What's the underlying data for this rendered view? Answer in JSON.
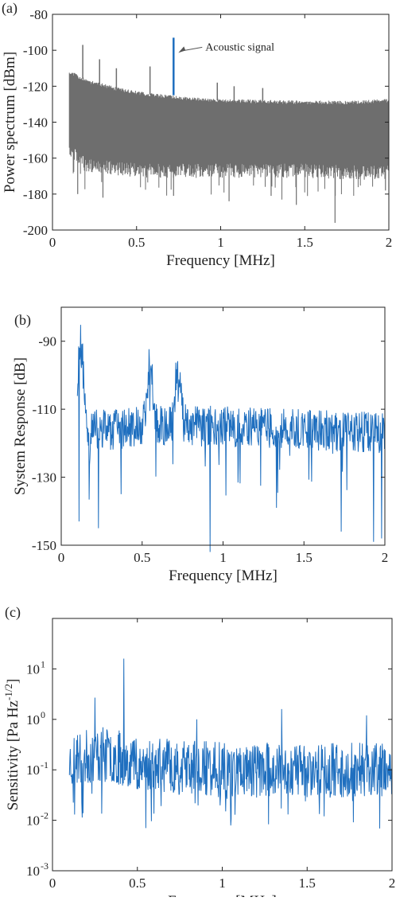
{
  "chart_data": [
    {
      "type": "line",
      "panel_label": "(a)",
      "xlabel": "Frequency [MHz]",
      "ylabel": "Power spectrum [dBm]",
      "xlim": [
        0,
        2
      ],
      "ylim": [
        -200,
        -80
      ],
      "xticks": [
        0,
        0.5,
        1,
        1.5,
        2
      ],
      "xtick_labels": [
        "0",
        "0.5",
        "1",
        "1.5",
        "2"
      ],
      "yticks": [
        -80,
        -100,
        -120,
        -140,
        -160,
        -180,
        -200
      ],
      "ytick_labels": [
        "-80",
        "-100",
        "-120",
        "-140",
        "-160",
        "-180",
        "-200"
      ],
      "annotation": {
        "text": "Acoustic signal",
        "x": 0.72,
        "y": -93
      },
      "colors": {
        "trace": "#6e6e6e",
        "signal": "#1f6fbf",
        "axes": "#222222"
      },
      "series": [
        {
          "role": "envelope",
          "x_range": [
            0.1,
            2.0
          ],
          "x": [
            0.1,
            0.2,
            0.4,
            0.6,
            0.8,
            1.0,
            1.2,
            1.5,
            1.8,
            2.0
          ],
          "upper": [
            -112,
            -117,
            -122,
            -125,
            -127,
            -128,
            -128.5,
            -129,
            -129,
            -128
          ],
          "lower": [
            -152,
            -160,
            -162,
            -163,
            -163,
            -163,
            -163,
            -163,
            -164,
            -164
          ]
        },
        {
          "role": "spurs",
          "x": [
            0.18,
            0.28,
            0.38,
            0.58,
            0.98,
            1.08,
            1.25
          ],
          "peak": [
            -97,
            -105,
            -110,
            -109,
            -118,
            -120,
            -121
          ]
        },
        {
          "role": "dips",
          "x": [
            0.15,
            0.3,
            0.72,
            1.05,
            1.3,
            1.45,
            1.68,
            1.98
          ],
          "min": [
            -180,
            -182,
            -181,
            -184,
            -181,
            -186,
            -196,
            -178
          ]
        },
        {
          "role": "signal",
          "x": [
            0.72
          ],
          "peak": [
            -93
          ]
        }
      ]
    },
    {
      "type": "line",
      "panel_label": "(b)",
      "xlabel": "Frequency [MHz]",
      "ylabel": "System Response [dB]",
      "xlim": [
        0,
        2
      ],
      "ylim": [
        -150,
        -80
      ],
      "xticks": [
        0,
        0.5,
        1,
        1.5,
        2
      ],
      "xtick_labels": [
        "0",
        "0.5",
        "1",
        "1.5",
        "2"
      ],
      "yticks": [
        -90,
        -110,
        -130,
        -150
      ],
      "ytick_labels": [
        "-90",
        "-110",
        "-130",
        "-150"
      ],
      "colors": {
        "trace": "#1f6fbf",
        "axes": "#222222"
      },
      "series": [
        {
          "role": "baseline",
          "x": [
            0.1,
            0.3,
            0.5,
            1.0,
            1.5,
            2.0
          ],
          "y": [
            -116,
            -116,
            -115,
            -115,
            -116,
            -117
          ]
        },
        {
          "role": "peaks",
          "x": [
            0.12,
            0.55,
            0.72
          ],
          "peak": [
            -84,
            -95,
            -97
          ]
        },
        {
          "role": "dips",
          "x": [
            0.11,
            0.23,
            0.37,
            0.92,
            1.33,
            1.73,
            1.93,
            1.98
          ],
          "min": [
            -143,
            -145,
            -135,
            -152,
            -139,
            -146,
            -149,
            -148
          ]
        }
      ]
    },
    {
      "type": "line",
      "panel_label": "(c)",
      "xlabel": "Frequency [MHz]",
      "ylabel": "Sensitivity [Pa Hz^-1/2]",
      "ylabel_parts": {
        "main": "Sensitivity [Pa Hz",
        "sup": "-1/2",
        "close": "]"
      },
      "xlim": [
        0,
        2
      ],
      "ylim": [
        0.001,
        100
      ],
      "yscale": "log",
      "xticks": [
        0,
        0.5,
        1,
        1.5,
        2
      ],
      "xtick_labels": [
        "0",
        "0.5",
        "1",
        "1.5",
        "2"
      ],
      "yticks": [
        0.001,
        0.01,
        0.1,
        1,
        10
      ],
      "ytick_labels": [
        {
          "base": "10",
          "exp": "-3"
        },
        {
          "base": "10",
          "exp": "-2"
        },
        {
          "base": "10",
          "exp": "-1"
        },
        {
          "base": "10",
          "exp": "0"
        },
        {
          "base": "10",
          "exp": "1"
        }
      ],
      "colors": {
        "trace": "#1f6fbf",
        "axes": "#222222"
      },
      "series": [
        {
          "role": "baseline",
          "x": [
            0.1,
            0.3,
            0.6,
            1.0,
            1.5,
            2.0
          ],
          "y": [
            0.15,
            0.2,
            0.12,
            0.1,
            0.1,
            0.1
          ]
        },
        {
          "role": "peaks",
          "x": [
            0.25,
            0.42,
            0.85,
            1.35,
            1.85
          ],
          "peak": [
            2.7,
            16,
            1.0,
            1.6,
            1.2
          ]
        },
        {
          "role": "dips",
          "x": [
            0.13,
            0.55,
            1.02,
            1.6
          ],
          "min": [
            0.013,
            0.007,
            0.015,
            0.012
          ]
        }
      ]
    }
  ]
}
